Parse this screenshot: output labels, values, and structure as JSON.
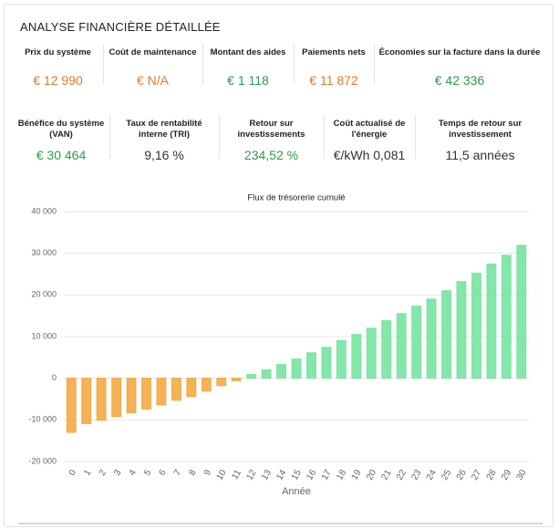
{
  "title": "ANALYSE FINANCIÈRE DÉTAILLÉE",
  "metrics": [
    [
      {
        "label": "Prix du système",
        "value": "€ 12 990",
        "color": "#e8782a"
      },
      {
        "label": "Coût de maintenance",
        "value": "€ N/A",
        "color": "#e8782a"
      },
      {
        "label": "Montant des aides",
        "value": "€ 1 118",
        "color": "#2e9a4e"
      },
      {
        "label": "Paiements nets",
        "value": "€ 11 872",
        "color": "#e8782a"
      },
      {
        "label": "Économies sur la facture dans la durée",
        "value": "€ 42 336",
        "color": "#2e9a4e"
      }
    ],
    [
      {
        "label": "Bénéfice du système (VAN)",
        "value": "€ 30 464",
        "color": "#2e9a4e"
      },
      {
        "label": "Taux de rentabilité interne (TRI)",
        "value": "9,16 %",
        "color": "#333333"
      },
      {
        "label": "Retour sur investissements",
        "value": "234,52 %",
        "color": "#2e9a4e"
      },
      {
        "label": "Coût actualisé de l'énergie",
        "value": "€/kWh 0,081",
        "color": "#333333"
      },
      {
        "label": "Temps de retour sur investissement",
        "value": "11,5 années",
        "color": "#333333"
      }
    ]
  ],
  "chart_data": {
    "type": "bar",
    "title": "Flux de trésorerie cumulé",
    "x_label": "Année",
    "categories": [
      "0",
      "1",
      "2",
      "3",
      "4",
      "5",
      "6",
      "7",
      "8",
      "9",
      "10",
      "11",
      "12",
      "13",
      "14",
      "15",
      "16",
      "17",
      "18",
      "19",
      "20",
      "21",
      "22",
      "23",
      "24",
      "25",
      "26",
      "27",
      "28",
      "29",
      "30"
    ],
    "values": [
      -12990,
      -10900,
      -10100,
      -9200,
      -8300,
      -7400,
      -6400,
      -5300,
      -4400,
      -3100,
      -1800,
      -600,
      900,
      2000,
      3300,
      4600,
      6100,
      7400,
      9000,
      10500,
      12000,
      13800,
      15500,
      17300,
      19000,
      21000,
      23200,
      25200,
      27400,
      29500,
      31900
    ],
    "negative_color": "#f3a43a",
    "positive_color": "#6fe39a",
    "ylim": [
      -20000,
      40000
    ],
    "yticks": [
      {
        "value": -20000,
        "label": "-20 000"
      },
      {
        "value": -10000,
        "label": "-10 000"
      },
      0,
      {
        "value": 10000,
        "label": "10 000"
      },
      {
        "value": 20000,
        "label": "20 000"
      },
      {
        "value": 30000,
        "label": "30 000"
      },
      {
        "value": 40000,
        "label": "40 000"
      }
    ],
    "grid": true
  }
}
